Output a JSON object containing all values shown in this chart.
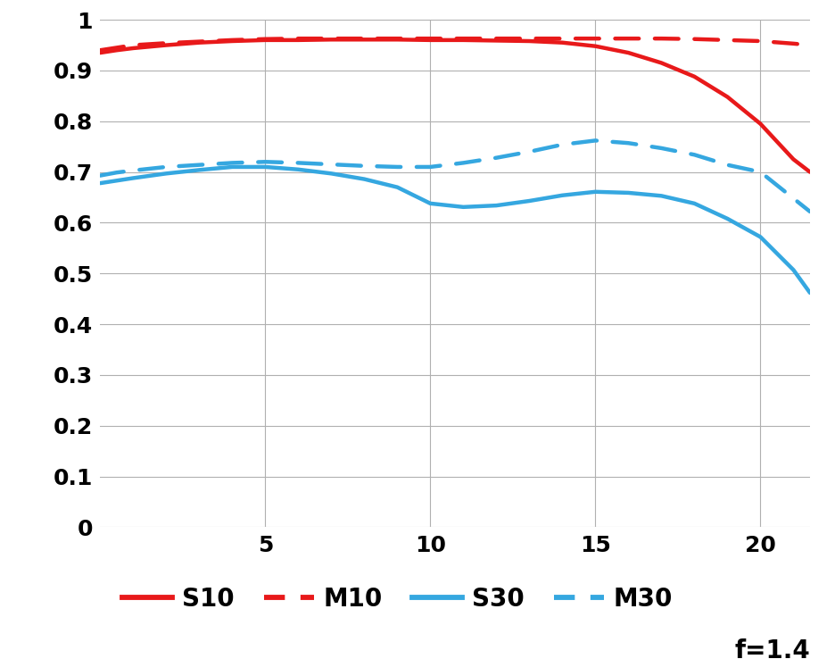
{
  "xlim": [
    0,
    21.5
  ],
  "ylim": [
    0,
    1.0
  ],
  "xticks": [
    5,
    10,
    15,
    20
  ],
  "yticks": [
    0,
    0.1,
    0.2,
    0.3,
    0.4,
    0.5,
    0.6,
    0.7,
    0.8,
    0.9,
    1.0
  ],
  "annotation": "f=1.4",
  "background_color": "#ffffff",
  "grid_color": "#b0b0b0",
  "S10_color": "#e8191a",
  "M10_color": "#e8191a",
  "S30_color": "#35a7e0",
  "M30_color": "#35a7e0",
  "S10_x": [
    0,
    0.5,
    1,
    2,
    3,
    4,
    5,
    6,
    7,
    8,
    9,
    10,
    11,
    12,
    13,
    14,
    15,
    16,
    17,
    18,
    19,
    20,
    21,
    21.5
  ],
  "S10_y": [
    0.935,
    0.94,
    0.944,
    0.95,
    0.955,
    0.958,
    0.96,
    0.96,
    0.961,
    0.961,
    0.961,
    0.96,
    0.96,
    0.959,
    0.958,
    0.955,
    0.948,
    0.935,
    0.915,
    0.888,
    0.848,
    0.795,
    0.725,
    0.7
  ],
  "M10_x": [
    0,
    0.5,
    1,
    2,
    3,
    4,
    5,
    6,
    7,
    8,
    9,
    10,
    11,
    12,
    13,
    14,
    15,
    16,
    17,
    18,
    19,
    20,
    21,
    21.5
  ],
  "M10_y": [
    0.94,
    0.945,
    0.95,
    0.954,
    0.957,
    0.96,
    0.962,
    0.963,
    0.963,
    0.963,
    0.963,
    0.963,
    0.963,
    0.963,
    0.963,
    0.963,
    0.963,
    0.963,
    0.963,
    0.962,
    0.96,
    0.958,
    0.953,
    0.95
  ],
  "S30_x": [
    0,
    0.5,
    1,
    2,
    3,
    4,
    5,
    6,
    7,
    8,
    9,
    10,
    11,
    12,
    13,
    14,
    15,
    16,
    17,
    18,
    19,
    20,
    21,
    21.5
  ],
  "S30_y": [
    0.678,
    0.683,
    0.688,
    0.697,
    0.704,
    0.71,
    0.71,
    0.705,
    0.697,
    0.686,
    0.67,
    0.638,
    0.631,
    0.634,
    0.643,
    0.654,
    0.661,
    0.659,
    0.653,
    0.638,
    0.608,
    0.572,
    0.507,
    0.462
  ],
  "M30_x": [
    0,
    0.5,
    1,
    2,
    3,
    4,
    5,
    6,
    7,
    8,
    9,
    10,
    11,
    12,
    13,
    14,
    15,
    16,
    17,
    18,
    19,
    20,
    21,
    21.5
  ],
  "M30_y": [
    0.693,
    0.699,
    0.703,
    0.71,
    0.714,
    0.718,
    0.72,
    0.718,
    0.715,
    0.712,
    0.71,
    0.71,
    0.718,
    0.728,
    0.74,
    0.754,
    0.762,
    0.757,
    0.747,
    0.734,
    0.714,
    0.7,
    0.648,
    0.622
  ],
  "line_width": 3.2,
  "tick_fontsize": 18,
  "legend_fontsize": 20,
  "annot_fontsize": 20
}
